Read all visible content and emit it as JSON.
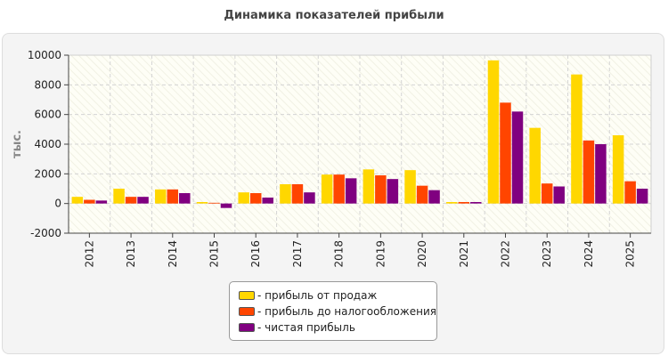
{
  "chart_data": {
    "type": "bar",
    "title": "Динамика показателей прибыли",
    "ylabel": "тыс.",
    "xlabel": "",
    "categories": [
      "2012",
      "2013",
      "2014",
      "2015",
      "2016",
      "2017",
      "2018",
      "2019",
      "2020",
      "2021",
      "2022",
      "2023",
      "2024",
      "2025"
    ],
    "ylim": [
      -2000,
      10000
    ],
    "yticks": [
      -2000,
      0,
      2000,
      4000,
      6000,
      8000,
      10000
    ],
    "grid": true,
    "legend_position": "bottom",
    "series": [
      {
        "name": "- прибыль от продаж",
        "color": "#FFD700",
        "values": [
          450,
          1000,
          950,
          100,
          750,
          1300,
          1950,
          2300,
          2250,
          100,
          9650,
          5100,
          8700,
          4600
        ]
      },
      {
        "name": "- прибыль до налогообложения",
        "color": "#FF4500",
        "values": [
          250,
          450,
          950,
          50,
          700,
          1300,
          1950,
          1900,
          1200,
          100,
          6800,
          1350,
          4250,
          1500
        ]
      },
      {
        "name": "- чистая прибыль",
        "color": "#800080",
        "values": [
          200,
          450,
          700,
          -300,
          400,
          750,
          1700,
          1650,
          900,
          100,
          6200,
          1150,
          4000,
          1000
        ]
      }
    ]
  }
}
